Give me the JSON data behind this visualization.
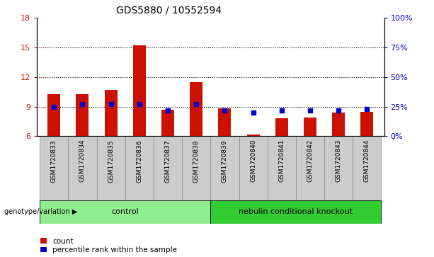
{
  "title": "GDS5880 / 10552594",
  "samples": [
    "GSM1720833",
    "GSM1720834",
    "GSM1720835",
    "GSM1720836",
    "GSM1720837",
    "GSM1720838",
    "GSM1720839",
    "GSM1720840",
    "GSM1720841",
    "GSM1720842",
    "GSM1720843",
    "GSM1720844"
  ],
  "counts": [
    10.3,
    10.3,
    10.7,
    15.2,
    8.7,
    11.5,
    8.8,
    6.2,
    7.8,
    7.9,
    8.4,
    8.5
  ],
  "percentiles": [
    25,
    27,
    27,
    27,
    22,
    27,
    22,
    20,
    22,
    22,
    22,
    23
  ],
  "ymin": 6,
  "ymax": 18,
  "yticks_left": [
    6,
    9,
    12,
    15,
    18
  ],
  "yticks_right": [
    0,
    25,
    50,
    75,
    100
  ],
  "bar_color": "#cc1100",
  "dot_color": "#0000cc",
  "bar_bottom": 6,
  "n_control": 6,
  "control_label": "control",
  "knockout_label": "nebulin conditional knockout",
  "group_label": "genotype/variation",
  "legend_count_label": "count",
  "legend_pct_label": "percentile rank within the sample",
  "control_bg": "#90ee90",
  "knockout_bg": "#32cd32",
  "xticklabel_bg": "#cccccc",
  "plot_bg": "#ffffff",
  "gridline_ticks": [
    9,
    12,
    15
  ]
}
